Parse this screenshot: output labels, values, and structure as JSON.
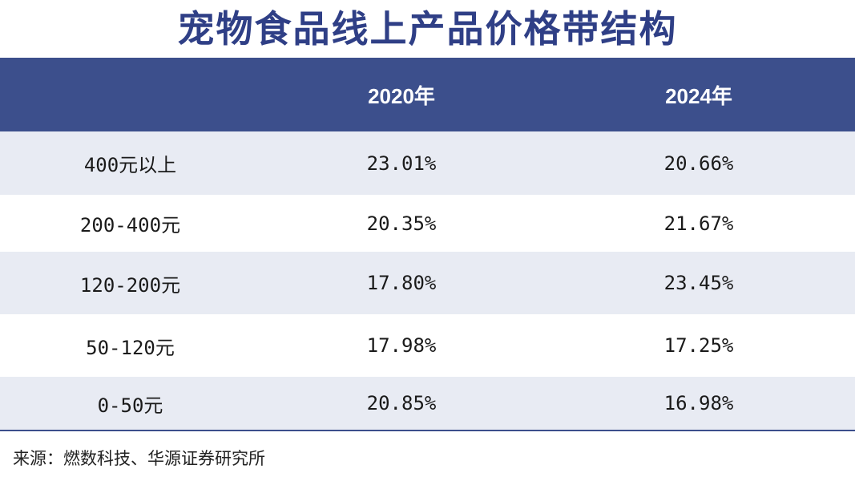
{
  "title": "宠物食品线上产品价格带结构",
  "table": {
    "headers": [
      "",
      "2020年",
      "2024年"
    ],
    "rows": [
      {
        "label": "400元以上",
        "y2020": "23.01%",
        "y2024": "20.66%"
      },
      {
        "label": "200-400元",
        "y2020": "20.35%",
        "y2024": "21.67%"
      },
      {
        "label": "120-200元",
        "y2020": "17.80%",
        "y2024": "23.45%"
      },
      {
        "label": "50-120元",
        "y2020": "17.98%",
        "y2024": "17.25%"
      },
      {
        "label": "0-50元",
        "y2020": "20.85%",
        "y2024": "16.98%"
      }
    ]
  },
  "source": "来源：燃数科技、华源证券研究所",
  "colors": {
    "title": "#2f3f86",
    "header_bg": "#3c4f8c",
    "alt_row_bg": "#e8ebf3"
  }
}
